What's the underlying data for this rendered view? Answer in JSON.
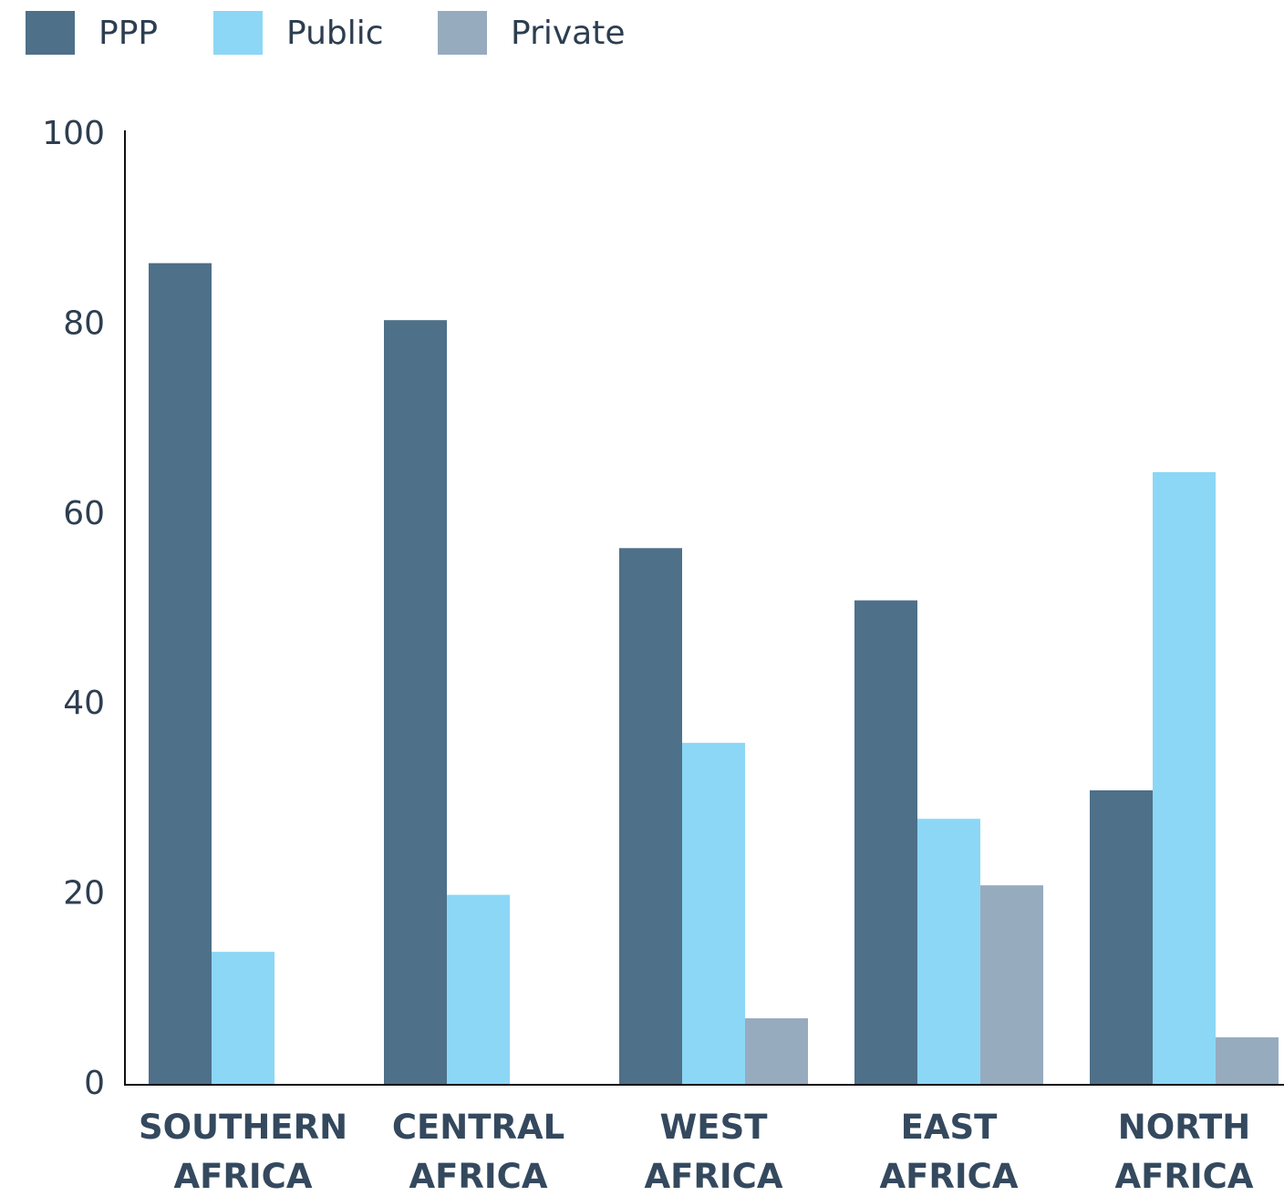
{
  "chart_data": {
    "type": "bar",
    "categories": [
      "SOUTHERN AFRICA",
      "CENTRAL AFRICA",
      "WEST AFRICA",
      "EAST AFRICA",
      "NORTH AFRICA"
    ],
    "series": [
      {
        "name": "PPP",
        "color": "#4e7089",
        "values": [
          86.5,
          80.5,
          56.5,
          51,
          31
        ]
      },
      {
        "name": "Public",
        "color": "#8cd7f6",
        "values": [
          14,
          20,
          36,
          28,
          64.5
        ]
      },
      {
        "name": "Private",
        "color": "#97abbf",
        "values": [
          0,
          0,
          7,
          21,
          5
        ]
      }
    ],
    "ylim": [
      0,
      100
    ],
    "yticks": [
      0,
      20,
      40,
      60,
      80,
      100
    ],
    "grid": false,
    "legend": "top"
  }
}
